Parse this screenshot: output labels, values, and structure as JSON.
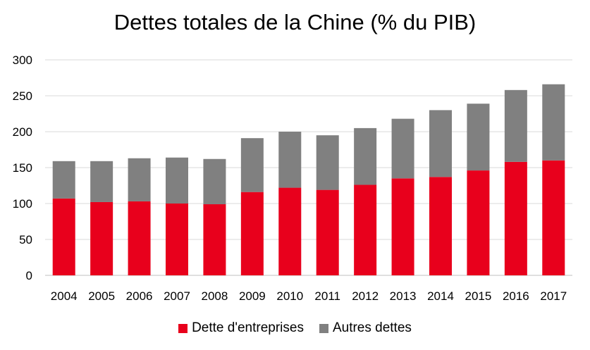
{
  "chart_data": {
    "type": "bar",
    "stacked": true,
    "title": "Dettes totales de la Chine (% du PIB)",
    "categories": [
      "2004",
      "2005",
      "2006",
      "2007",
      "2008",
      "2009",
      "2010",
      "2011",
      "2012",
      "2013",
      "2014",
      "2015",
      "2016",
      "2017"
    ],
    "series": [
      {
        "name": "Dette d'entreprises",
        "color": "#e8001c",
        "values": [
          107,
          102,
          103,
          100,
          99,
          116,
          122,
          119,
          126,
          135,
          137,
          146,
          158,
          160
        ]
      },
      {
        "name": "Autres dettes",
        "color": "#808080",
        "values": [
          52,
          57,
          60,
          64,
          63,
          75,
          78,
          76,
          79,
          83,
          93,
          93,
          100,
          106
        ]
      }
    ],
    "xlabel": "",
    "ylabel": "",
    "ylim": [
      0,
      300
    ],
    "yticks": [
      0,
      50,
      100,
      150,
      200,
      250,
      300
    ],
    "grid": true,
    "legend_position": "bottom"
  }
}
